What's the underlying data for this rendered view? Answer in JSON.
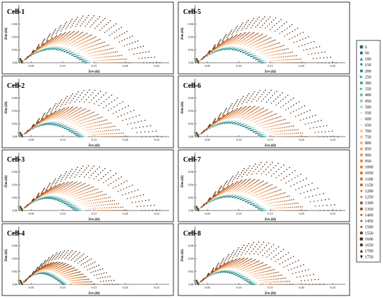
{
  "chart_data": [
    {
      "type": "scatter",
      "title": "Cell-1",
      "xlabel": "Zre (Ω)",
      "ylabel": "Zim (Ω)",
      "xlim": [
        0.03,
        0.27
      ],
      "ylim": [
        0,
        -0.09
      ],
      "xticks": [
        "0.05",
        "0.10",
        "0.15",
        "0.20",
        "0.25"
      ],
      "yticks": [
        "0.00",
        "-0.02",
        "-0.04",
        "-0.06",
        "-0.08"
      ],
      "arcs": [
        {
          "r0": 0.032,
          "x_end": 0.135,
          "h": 0.022
        },
        {
          "r0": 0.032,
          "x_end": 0.228,
          "h": 0.06
        },
        {
          "r0": 0.032,
          "x_end": 0.255,
          "h": 0.078
        }
      ]
    },
    {
      "type": "scatter",
      "title": "Cell-2",
      "xlabel": "Zre (Ω)",
      "ylabel": "Zim (Ω)",
      "xlim": [
        0.03,
        0.27
      ],
      "ylim": [
        0,
        -0.09
      ],
      "xticks": [
        "0.05",
        "0.10",
        "0.15",
        "0.20",
        "0.25"
      ],
      "yticks": [
        "0.00",
        "-0.02",
        "-0.04",
        "-0.06",
        "-0.08"
      ],
      "arcs": [
        {
          "r0": 0.032,
          "x_end": 0.125,
          "h": 0.02
        },
        {
          "r0": 0.032,
          "x_end": 0.225,
          "h": 0.057
        },
        {
          "r0": 0.032,
          "x_end": 0.258,
          "h": 0.077
        }
      ]
    },
    {
      "type": "scatter",
      "title": "Cell-3",
      "xlabel": "Zre (Ω)",
      "ylabel": "Zim (Ω)",
      "xlim": [
        0.03,
        0.27
      ],
      "ylim": [
        0,
        -0.09
      ],
      "xticks": [
        "0.05",
        "0.10",
        "0.15",
        "0.20",
        "0.25"
      ],
      "yticks": [
        "0.00",
        "-0.02",
        "-0.04",
        "-0.06",
        "-0.08"
      ],
      "arcs": [
        {
          "r0": 0.032,
          "x_end": 0.12,
          "h": 0.02
        },
        {
          "r0": 0.032,
          "x_end": 0.225,
          "h": 0.055
        },
        {
          "r0": 0.032,
          "x_end": 0.255,
          "h": 0.074
        }
      ]
    },
    {
      "type": "scatter",
      "title": "Cell-4",
      "xlabel": "Zre (Ω)",
      "ylabel": "Zim (Ω)",
      "xlim": [
        0.03,
        0.27
      ],
      "ylim": [
        0,
        -0.09
      ],
      "xticks": [
        "0.05",
        "0.10",
        "0.15",
        "0.20",
        "0.25"
      ],
      "yticks": [
        "0.00",
        "-0.02",
        "-0.04",
        "-0.06",
        "-0.08"
      ],
      "arcs": [
        {
          "r0": 0.032,
          "x_end": 0.1,
          "h": 0.018
        },
        {
          "r0": 0.032,
          "x_end": 0.165,
          "h": 0.042
        },
        {
          "r0": 0.032,
          "x_end": 0.188,
          "h": 0.056
        }
      ]
    },
    {
      "type": "scatter",
      "title": "Cell-5",
      "xlabel": "Zre (Ω)",
      "ylabel": "Zim (Ω)",
      "xlim": [
        0.03,
        0.27
      ],
      "ylim": [
        0,
        -0.09
      ],
      "xticks": [
        "0.05",
        "0.10",
        "0.15",
        "0.20",
        "0.25"
      ],
      "yticks": [
        "0.00",
        "-0.02",
        "-0.04",
        "-0.06",
        "-0.08"
      ],
      "arcs": [
        {
          "r0": 0.032,
          "x_end": 0.135,
          "h": 0.022
        },
        {
          "r0": 0.032,
          "x_end": 0.225,
          "h": 0.058
        },
        {
          "r0": 0.032,
          "x_end": 0.255,
          "h": 0.076
        }
      ]
    },
    {
      "type": "scatter",
      "title": "Cell-6",
      "xlabel": "Zre (Ω)",
      "ylabel": "Zim (Ω)",
      "xlim": [
        0.03,
        0.27
      ],
      "ylim": [
        0,
        -0.09
      ],
      "xticks": [
        "0.05",
        "0.10",
        "0.15",
        "0.20",
        "0.25"
      ],
      "yticks": [
        "0.00",
        "-0.02",
        "-0.04",
        "-0.06",
        "-0.08"
      ],
      "arcs": [
        {
          "r0": 0.032,
          "x_end": 0.135,
          "h": 0.022
        },
        {
          "r0": 0.032,
          "x_end": 0.228,
          "h": 0.058
        },
        {
          "r0": 0.032,
          "x_end": 0.258,
          "h": 0.077
        }
      ]
    },
    {
      "type": "scatter",
      "title": "Cell-7",
      "xlabel": "Zre (Ω)",
      "ylabel": "Zim (Ω)",
      "xlim": [
        0.03,
        0.27
      ],
      "ylim": [
        0,
        -0.09
      ],
      "xticks": [
        "0.05",
        "0.10",
        "0.15",
        "0.20",
        "0.25"
      ],
      "yticks": [
        "0.00",
        "-0.02",
        "-0.04",
        "-0.06",
        "-0.08"
      ],
      "arcs": [
        {
          "r0": 0.032,
          "x_end": 0.135,
          "h": 0.022
        },
        {
          "r0": 0.032,
          "x_end": 0.228,
          "h": 0.06
        },
        {
          "r0": 0.032,
          "x_end": 0.262,
          "h": 0.08
        }
      ]
    },
    {
      "type": "scatter",
      "title": "Cell-8",
      "xlabel": "Zre (Ω)",
      "ylabel": "Zim (Ω)",
      "xlim": [
        0.03,
        0.27
      ],
      "ylim": [
        0,
        -0.09
      ],
      "xticks": [
        "0.05",
        "0.10",
        "0.15",
        "0.20",
        "0.25"
      ],
      "yticks": [
        "0.00",
        "-0.02",
        "-0.04",
        "-0.06",
        "-0.08"
      ],
      "arcs": [
        {
          "r0": 0.032,
          "x_end": 0.12,
          "h": 0.02
        },
        {
          "r0": 0.032,
          "x_end": 0.205,
          "h": 0.05
        },
        {
          "r0": 0.032,
          "x_end": 0.235,
          "h": 0.07
        }
      ]
    }
  ],
  "legend": {
    "placement": "right",
    "entries": [
      "0",
      "50",
      "100",
      "150",
      "200",
      "250",
      "300",
      "350",
      "400",
      "450",
      "500",
      "550",
      "600",
      "650",
      "700",
      "750",
      "800",
      "850",
      "900",
      "950",
      "1000",
      "1050",
      "1100",
      "1150",
      "1200",
      "1250",
      "1300",
      "1350",
      "1400",
      "1450",
      "1500",
      "1550",
      "1600",
      "1650",
      "1700",
      "1750"
    ],
    "colors": [
      "#1f5f7a",
      "#1d6e88",
      "#1f7c8c",
      "#21888a",
      "#23938a",
      "#279d8c",
      "#34a697",
      "#4cb2a6",
      "#6cc0b8",
      "#8dcdc8",
      "#aadbd6",
      "#c8e8e3",
      "#e6f2ea",
      "#f6dcc6",
      "#f7cfae",
      "#f6c196",
      "#f4b37f",
      "#f2a56a",
      "#ef9857",
      "#eb8c47",
      "#e5823a",
      "#dd7930",
      "#d57229",
      "#cb6b25",
      "#c06423",
      "#b45e22",
      "#a65821",
      "#985120",
      "#8a4b1f",
      "#7d451e",
      "#70401d",
      "#63391b",
      "#58331a",
      "#4e2e18",
      "#442916",
      "#3b2414"
    ],
    "markers": [
      "square",
      "circle",
      "triangle-up",
      "triangle-down",
      "circle",
      "triangle-right",
      "circle",
      "triangle-right",
      "circle",
      "circle",
      "circle",
      "star",
      "star",
      "star",
      "circle",
      "circle",
      "circle",
      "circle",
      "circle",
      "circle",
      "circle",
      "circle",
      "circle",
      "circle",
      "star",
      "star",
      "circle",
      "circle",
      "star",
      "star",
      "star",
      "circle",
      "square",
      "circle",
      "triangle-up",
      "triangle-down"
    ]
  }
}
